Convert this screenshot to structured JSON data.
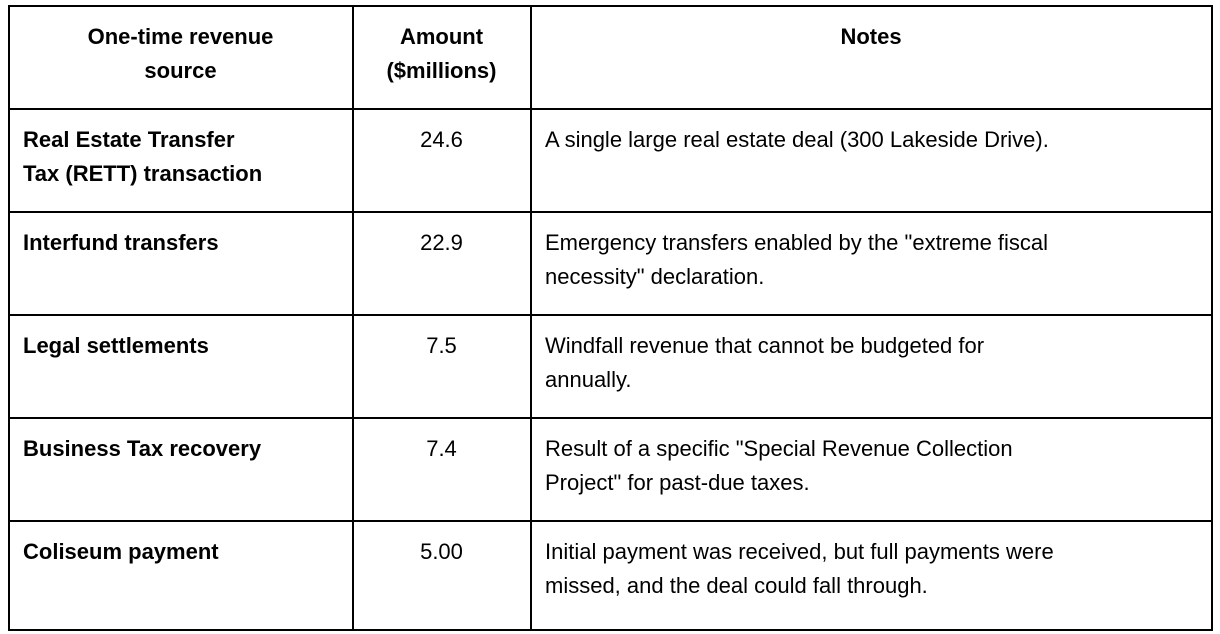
{
  "table": {
    "headers": {
      "source": "One-time revenue\nsource",
      "amount": "Amount\n($millions)",
      "notes": "Notes"
    },
    "rows": [
      {
        "source": "Real Estate Transfer\nTax (RETT) transaction",
        "amount": "24.6",
        "notes": "A single large real estate deal (300 Lakeside Drive)."
      },
      {
        "source": "Interfund transfers",
        "amount": "22.9",
        "notes": "Emergency transfers enabled by the \"extreme fiscal\nnecessity\" declaration."
      },
      {
        "source": "Legal settlements",
        "amount": "7.5",
        "notes": "Windfall revenue that cannot be budgeted for\nannually."
      },
      {
        "source": "Business Tax recovery",
        "amount": "7.4",
        "notes": "Result of a specific \"Special Revenue Collection\nProject\" for past-due taxes."
      },
      {
        "source": "Coliseum payment",
        "amount": "5.00",
        "notes": "Initial payment was received, but full payments were\nmissed, and the deal could fall through."
      }
    ]
  },
  "chart_data": {
    "type": "table",
    "title": "One-time revenue sources",
    "columns": [
      "One-time revenue source",
      "Amount ($millions)",
      "Notes"
    ],
    "categories": [
      "Real Estate Transfer Tax (RETT) transaction",
      "Interfund transfers",
      "Legal settlements",
      "Business Tax recovery",
      "Coliseum payment"
    ],
    "values": [
      24.6,
      22.9,
      7.5,
      7.4,
      5.0
    ]
  },
  "colors": {
    "border": "#000000",
    "text": "#000000",
    "background": "#ffffff"
  }
}
